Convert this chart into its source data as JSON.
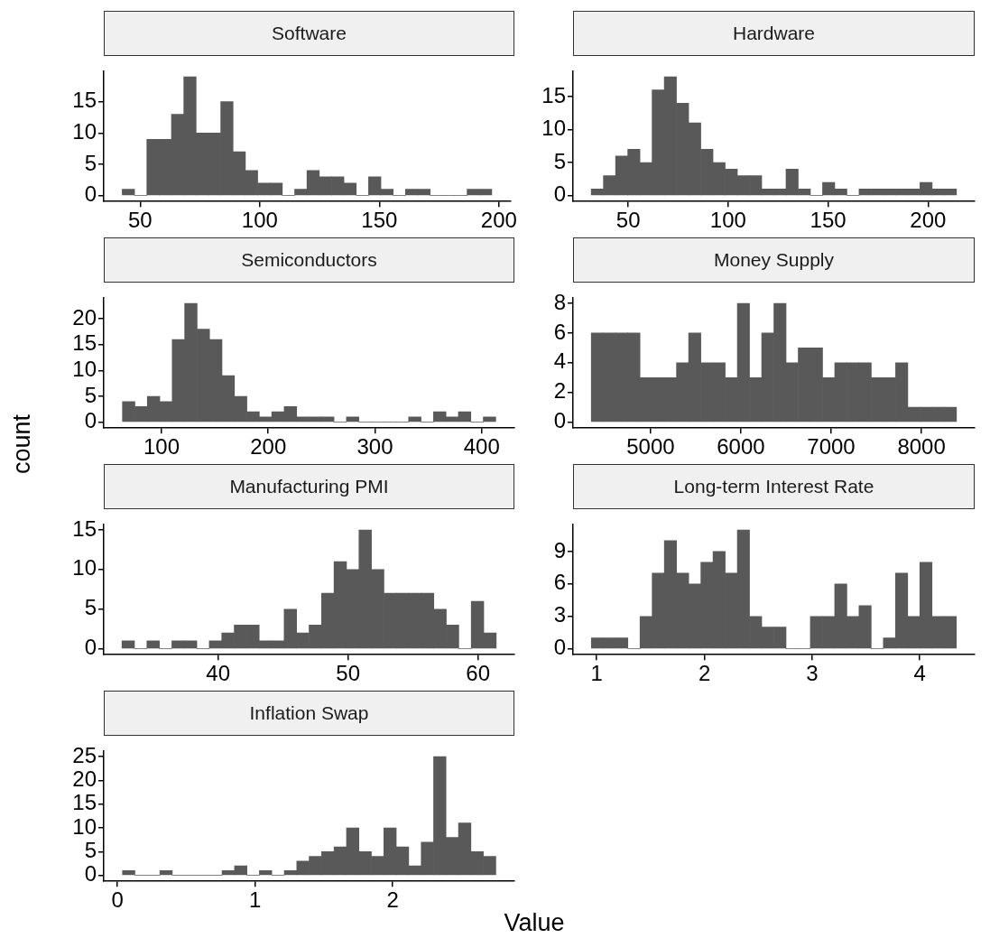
{
  "chart_data": [
    {
      "type": "histogram",
      "title": "Software",
      "color": "#595959",
      "grid": false,
      "bins": [
        42.5,
        47.65,
        52.8,
        57.95,
        63.1,
        68.25,
        73.4,
        78.55,
        83.7,
        88.85,
        94,
        99.15,
        104.3,
        109.45,
        114.6,
        119.75,
        124.9,
        130.05,
        135.2,
        140.35,
        145.5,
        150.65,
        155.8,
        160.95,
        166.1,
        171.25,
        176.4,
        181.55,
        186.7,
        191.85,
        197
      ],
      "values": [
        1,
        0,
        9,
        9,
        13,
        19,
        10,
        10,
        15,
        7,
        4,
        2,
        2,
        0,
        1,
        4,
        3,
        3,
        2,
        0,
        3,
        1,
        0,
        1,
        1,
        0,
        0,
        0,
        1,
        1
      ],
      "xlim": [
        34.8,
        204.7
      ],
      "xticks": [
        50,
        100,
        150,
        200
      ],
      "ylim": [
        -0.95,
        19.95
      ],
      "yticks": [
        0,
        5,
        10,
        15
      ]
    },
    {
      "type": "histogram",
      "title": "Hardware",
      "color": "#595959",
      "grid": false,
      "bins": [
        31.5,
        37.59,
        43.68,
        49.77,
        55.86,
        61.95,
        68.04,
        74.13,
        80.22,
        86.31,
        92.4,
        98.49,
        104.58,
        110.67,
        116.76,
        122.85,
        128.94,
        135.03,
        141.12,
        147.21,
        153.3,
        159.39,
        165.48,
        171.57,
        177.66,
        183.75,
        189.84,
        195.93,
        202.02,
        208.11,
        214.2
      ],
      "values": [
        1,
        3,
        6,
        7,
        5,
        16,
        18,
        14,
        11,
        7,
        5,
        4,
        3,
        3,
        1,
        1,
        4,
        1,
        0,
        2,
        1,
        0,
        1,
        1,
        1,
        1,
        1,
        2,
        1,
        1
      ],
      "xlim": [
        22.4,
        223.3
      ],
      "xticks": [
        50,
        100,
        150,
        200
      ],
      "ylim": [
        -0.9,
        18.9
      ],
      "yticks": [
        0,
        5,
        10,
        15
      ]
    },
    {
      "type": "histogram",
      "title": "Semiconductors",
      "ylabel": "count",
      "color": "#595959",
      "grid": false,
      "bins": [
        63.4,
        75.06,
        86.72,
        98.38,
        110.04,
        121.7,
        133.36,
        145.02,
        156.68,
        168.34,
        180,
        191.66,
        203.32,
        214.98,
        226.64,
        238.3,
        249.96,
        261.62,
        273.28,
        284.94,
        296.6,
        308.26,
        319.92,
        331.58,
        343.24,
        354.9,
        366.56,
        378.22,
        389.88,
        401.54,
        413.2
      ],
      "values": [
        4,
        3,
        5,
        4,
        16,
        23,
        18,
        16,
        9,
        5,
        2,
        1,
        2,
        3,
        1,
        1,
        1,
        0,
        1,
        0,
        0,
        0,
        0,
        1,
        0,
        2,
        1,
        2,
        0,
        1
      ],
      "xlim": [
        45.9,
        430.7
      ],
      "xticks": [
        100,
        200,
        300,
        400
      ],
      "ylim": [
        -1.15,
        24.15
      ],
      "yticks": [
        0,
        5,
        10,
        15,
        20
      ]
    },
    {
      "type": "histogram",
      "title": "Money Supply",
      "color": "#595959",
      "grid": false,
      "bins": [
        4343.5,
        4478.3,
        4613.1,
        4747.9,
        4882.7,
        5017.5,
        5152.3,
        5287.1,
        5421.9,
        5556.7,
        5691.5,
        5826.3,
        5961.1,
        6095.9,
        6230.7,
        6365.5,
        6500.3,
        6635.1,
        6769.9,
        6904.7,
        7039.5,
        7174.3,
        7309.1,
        7443.9,
        7578.7,
        7713.5,
        7848.3,
        7983.1,
        8117.9,
        8252.7,
        8387.5
      ],
      "values": [
        6,
        6,
        6,
        6,
        3,
        3,
        3,
        4,
        6,
        4,
        4,
        3,
        8,
        3,
        6,
        8,
        4,
        5,
        5,
        3,
        4,
        4,
        4,
        3,
        3,
        4,
        1,
        1,
        1,
        1
      ],
      "xlim": [
        4141.5,
        8589
      ],
      "xticks": [
        5000,
        6000,
        7000,
        8000
      ],
      "ylim": [
        -0.4,
        8.4
      ],
      "yticks": [
        0,
        2,
        4,
        6,
        8
      ]
    },
    {
      "type": "histogram",
      "title": "Manufacturing PMI",
      "color": "#595959",
      "grid": false,
      "bins": [
        32.6,
        33.56,
        34.52,
        35.48,
        36.44,
        37.4,
        38.36,
        39.32,
        40.28,
        41.24,
        42.2,
        43.16,
        44.12,
        45.08,
        46.04,
        47,
        47.96,
        48.92,
        49.88,
        50.84,
        51.8,
        52.76,
        53.72,
        54.68,
        55.64,
        56.6,
        57.56,
        58.52,
        59.48,
        60.44,
        61.4
      ],
      "values": [
        1,
        0,
        1,
        0,
        1,
        1,
        0,
        1,
        2,
        3,
        3,
        1,
        1,
        5,
        2,
        3,
        7,
        11,
        10,
        15,
        10,
        7,
        7,
        7,
        7,
        5,
        3,
        0,
        6,
        2
      ],
      "xlim": [
        31.2,
        62.8
      ],
      "xticks": [
        40,
        50,
        60
      ],
      "ylim": [
        -0.75,
        15.75
      ],
      "yticks": [
        0,
        5,
        10,
        15
      ]
    },
    {
      "type": "histogram",
      "title": "Long-term Interest Rate",
      "color": "#595959",
      "grid": false,
      "bins": [
        0.95,
        1.063,
        1.176,
        1.289,
        1.402,
        1.515,
        1.628,
        1.741,
        1.854,
        1.967,
        2.08,
        2.193,
        2.306,
        2.419,
        2.532,
        2.645,
        2.758,
        2.871,
        2.984,
        3.097,
        3.21,
        3.323,
        3.436,
        3.549,
        3.662,
        3.775,
        3.888,
        4.001,
        4.114,
        4.227,
        4.34
      ],
      "values": [
        1,
        1,
        1,
        0,
        3,
        7,
        10,
        7,
        6,
        8,
        9,
        7,
        11,
        3,
        2,
        2,
        0,
        0,
        3,
        3,
        6,
        3,
        4,
        0,
        1,
        7,
        3,
        8,
        3,
        3
      ],
      "xlim": [
        0.78,
        4.51
      ],
      "xticks": [
        1,
        2,
        3,
        4
      ],
      "ylim": [
        -0.55,
        11.55
      ],
      "yticks": [
        0,
        3,
        6,
        9
      ]
    },
    {
      "type": "histogram",
      "title": "Inflation Swap",
      "xlabel": "Value",
      "color": "#595959",
      "grid": false,
      "bins": [
        0.037,
        0.127,
        0.218,
        0.308,
        0.399,
        0.489,
        0.579,
        0.67,
        0.76,
        0.851,
        0.941,
        1.031,
        1.122,
        1.212,
        1.303,
        1.393,
        1.483,
        1.574,
        1.664,
        1.755,
        1.845,
        1.935,
        2.026,
        2.116,
        2.207,
        2.297,
        2.387,
        2.478,
        2.568,
        2.659,
        2.749
      ],
      "values": [
        1,
        0,
        0,
        1,
        0,
        0,
        0,
        0,
        1,
        2,
        0,
        1,
        0,
        1,
        3,
        4,
        5,
        6,
        10,
        5,
        4,
        10,
        6,
        2,
        7,
        25,
        8,
        11,
        5,
        4
      ],
      "xlim": [
        -0.099,
        2.884
      ],
      "xticks": [
        0,
        1,
        2
      ],
      "ylim": [
        -1.25,
        26.25
      ],
      "yticks": [
        0,
        5,
        10,
        15,
        20,
        25
      ]
    }
  ]
}
